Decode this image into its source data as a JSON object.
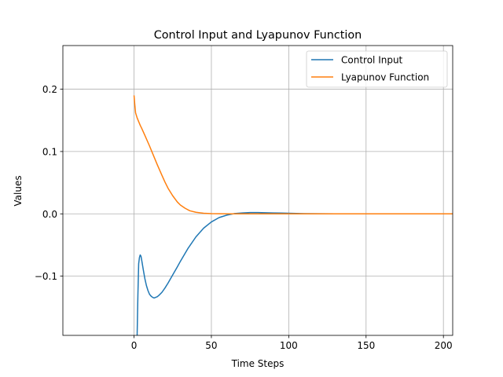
{
  "chart_data": {
    "type": "line",
    "title": "Control Input and Lyapunov Function",
    "xlabel": "Time Steps",
    "ylabel": "Values",
    "xlim": [
      -46,
      206
    ],
    "ylim": [
      -0.195,
      0.27
    ],
    "xticks": [
      0,
      50,
      100,
      150,
      200
    ],
    "xtick_labels": [
      "0",
      "50",
      "100",
      "150",
      "200"
    ],
    "yticks": [
      -0.1,
      0.0,
      0.1,
      0.2
    ],
    "ytick_labels": [
      "−0.1",
      "0.0",
      "0.1",
      "0.2"
    ],
    "grid": true,
    "legend_position": "top-right",
    "series": [
      {
        "name": "Control Input",
        "color": "#1f77b4",
        "x": [
          2,
          2.5,
          3,
          3.5,
          4,
          4.5,
          5,
          6,
          7,
          8,
          9,
          10,
          11,
          12,
          13,
          14,
          15,
          16,
          18,
          20,
          22,
          25,
          28,
          30,
          35,
          40,
          45,
          50,
          55,
          60,
          65,
          70,
          75,
          80,
          85,
          90,
          95,
          100,
          110,
          120,
          130,
          140,
          160,
          180,
          206
        ],
        "values": [
          -0.195,
          -0.13,
          -0.08,
          -0.07,
          -0.066,
          -0.068,
          -0.075,
          -0.09,
          -0.104,
          -0.115,
          -0.123,
          -0.129,
          -0.132,
          -0.134,
          -0.135,
          -0.134,
          -0.133,
          -0.131,
          -0.126,
          -0.119,
          -0.111,
          -0.098,
          -0.085,
          -0.076,
          -0.055,
          -0.037,
          -0.023,
          -0.013,
          -0.006,
          -0.002,
          0.0005,
          0.0015,
          0.002,
          0.002,
          0.0018,
          0.0015,
          0.0012,
          0.0009,
          0.0004,
          0.0001,
          0.0,
          0.0,
          0.0,
          0.0,
          0.0
        ]
      },
      {
        "name": "Lyapunov Function",
        "color": "#ff7f0e",
        "x": [
          0,
          0.5,
          1,
          2,
          3,
          4,
          5,
          7,
          10,
          12,
          15,
          18,
          20,
          22,
          25,
          28,
          30,
          33,
          36,
          40,
          45,
          50,
          55,
          60,
          70,
          80,
          100,
          150,
          206
        ],
        "values": [
          0.19,
          0.175,
          0.162,
          0.154,
          0.148,
          0.142,
          0.137,
          0.126,
          0.109,
          0.097,
          0.079,
          0.062,
          0.051,
          0.041,
          0.029,
          0.019,
          0.014,
          0.009,
          0.005,
          0.0025,
          0.001,
          0.0004,
          0.0001,
          0.0,
          0.0,
          0.0,
          0.0,
          0.0,
          0.0
        ]
      }
    ]
  }
}
